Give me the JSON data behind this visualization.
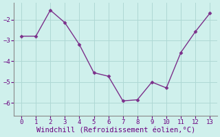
{
  "x": [
    0,
    1,
    2,
    3,
    4,
    5,
    6,
    7,
    8,
    9,
    10,
    11,
    12,
    13
  ],
  "y": [
    -2.8,
    -2.8,
    -1.55,
    -2.15,
    -3.2,
    -4.55,
    -4.72,
    -5.9,
    -5.85,
    -5.0,
    -5.28,
    -3.58,
    -2.58,
    -1.7
  ],
  "line_color": "#7b2f8a",
  "marker": "D",
  "marker_size": 2.5,
  "line_width": 1.0,
  "xlabel": "Windchill (Refroidissement éolien,°C)",
  "xlabel_fontsize": 7.5,
  "xlabel_color": "#6a0080",
  "tick_label_color": "#6a0080",
  "bg_color": "#cff0ec",
  "grid_color": "#aed8d4",
  "spine_color": "#888888",
  "xlim": [
    -0.5,
    13.5
  ],
  "ylim": [
    -6.6,
    -1.2
  ],
  "xticks": [
    0,
    1,
    2,
    3,
    4,
    5,
    6,
    7,
    8,
    9,
    10,
    11,
    12,
    13
  ],
  "yticks": [
    -6,
    -5,
    -4,
    -3,
    -2
  ]
}
